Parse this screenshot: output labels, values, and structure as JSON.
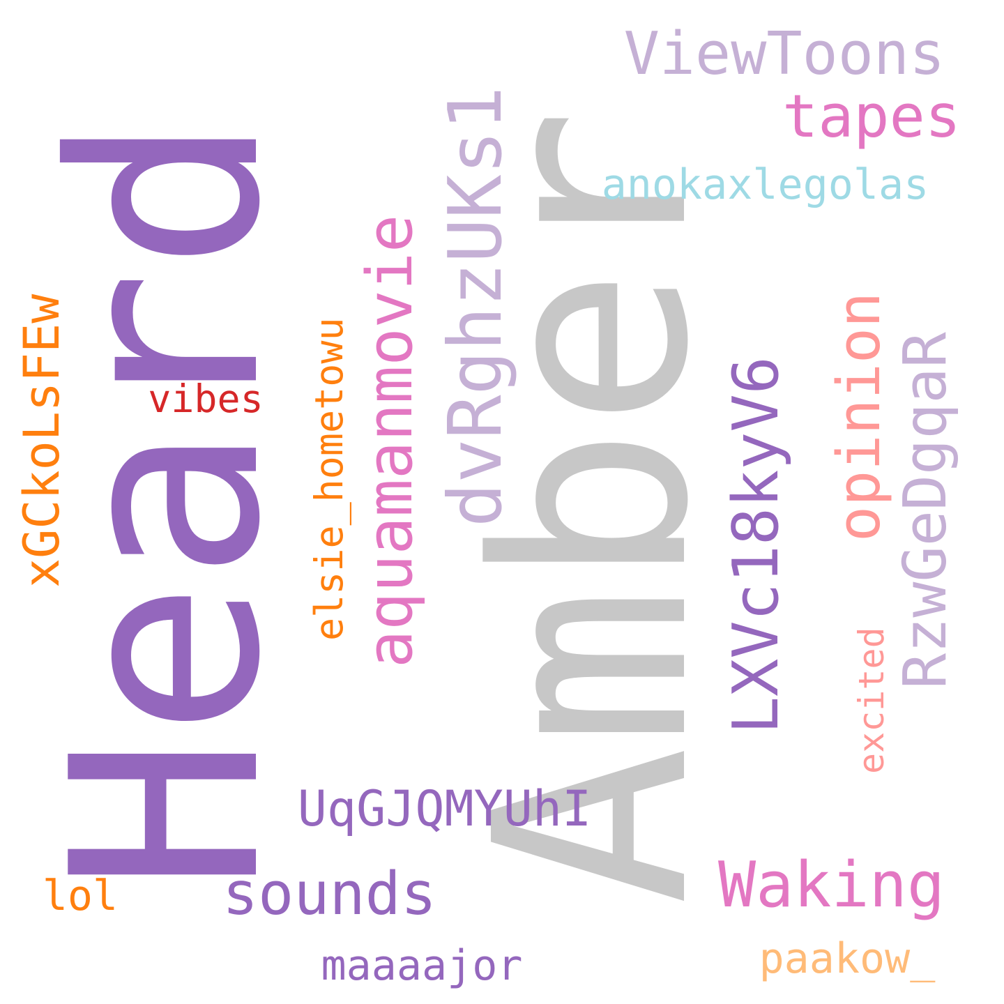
{
  "colors": {
    "purple": "#9467bd",
    "gray": "#c7c7c7",
    "lavender": "#c5b0d5",
    "pink": "#e377c2",
    "orange": "#ff7f0e",
    "light_cyan": "#9edae5",
    "salmon": "#ff9896",
    "red": "#d62728",
    "peach": "#ffbb78"
  },
  "words": [
    {
      "text": "Heard",
      "color": "purple"
    },
    {
      "text": "Amber",
      "color": "gray"
    },
    {
      "text": "ViewToons",
      "color": "lavender"
    },
    {
      "text": "tapes",
      "color": "pink"
    },
    {
      "text": "anokaxlegolas",
      "color": "light_cyan"
    },
    {
      "text": "dvRghzUKs1",
      "color": "lavender"
    },
    {
      "text": "aquamanmovie",
      "color": "pink"
    },
    {
      "text": "xGCkoLsFEw",
      "color": "orange"
    },
    {
      "text": "elsie_hometowu",
      "color": "orange"
    },
    {
      "text": "vibes",
      "color": "red"
    },
    {
      "text": "LXVc18kyV6",
      "color": "purple"
    },
    {
      "text": "opinion",
      "color": "salmon"
    },
    {
      "text": "RzwGeDgqaR",
      "color": "lavender"
    },
    {
      "text": "excited",
      "color": "salmon"
    },
    {
      "text": "UqGJQMYUhI",
      "color": "purple"
    },
    {
      "text": "sounds",
      "color": "purple"
    },
    {
      "text": "lol",
      "color": "orange"
    },
    {
      "text": "Waking",
      "color": "pink"
    },
    {
      "text": "paakow_",
      "color": "peach"
    },
    {
      "text": "maaaajor",
      "color": "purple"
    }
  ]
}
